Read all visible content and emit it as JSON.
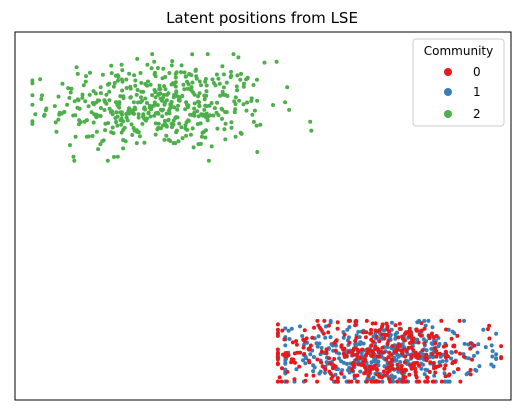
{
  "chart_data": {
    "type": "scatter",
    "title": "Latent positions from LSE",
    "xlabel": "",
    "ylabel": "",
    "xlim": [
      -1.0,
      1.0
    ],
    "ylim": [
      -1.0,
      1.0
    ],
    "grid": false,
    "x_ticks": false,
    "y_ticks": false,
    "legend": {
      "title": "Community",
      "placement": "top-right",
      "entries": [
        {
          "label": "0",
          "color": "#e41a1c"
        },
        {
          "label": "1",
          "color": "#377eb8"
        },
        {
          "label": "2",
          "color": "#4daf4a"
        }
      ]
    },
    "series": [
      {
        "name": "0",
        "color": "#e41a1c",
        "cluster": {
          "center": [
            0.48,
            -0.75
          ],
          "spread": [
            0.22,
            0.1
          ],
          "xrange": [
            0.06,
            0.96
          ],
          "yrange": [
            -0.9,
            -0.57
          ],
          "count": 400
        }
      },
      {
        "name": "1",
        "color": "#377eb8",
        "cluster": {
          "center": [
            0.48,
            -0.76
          ],
          "spread": [
            0.2,
            0.09
          ],
          "xrange": [
            0.09,
            0.94
          ],
          "yrange": [
            -0.9,
            -0.57
          ],
          "count": 420
        }
      },
      {
        "name": "2",
        "color": "#4daf4a",
        "cluster": {
          "center": [
            -0.42,
            0.6
          ],
          "spread": [
            0.22,
            0.12
          ],
          "xrange": [
            -0.93,
            0.3
          ],
          "yrange": [
            0.3,
            0.88
          ],
          "count": 500
        }
      }
    ]
  }
}
